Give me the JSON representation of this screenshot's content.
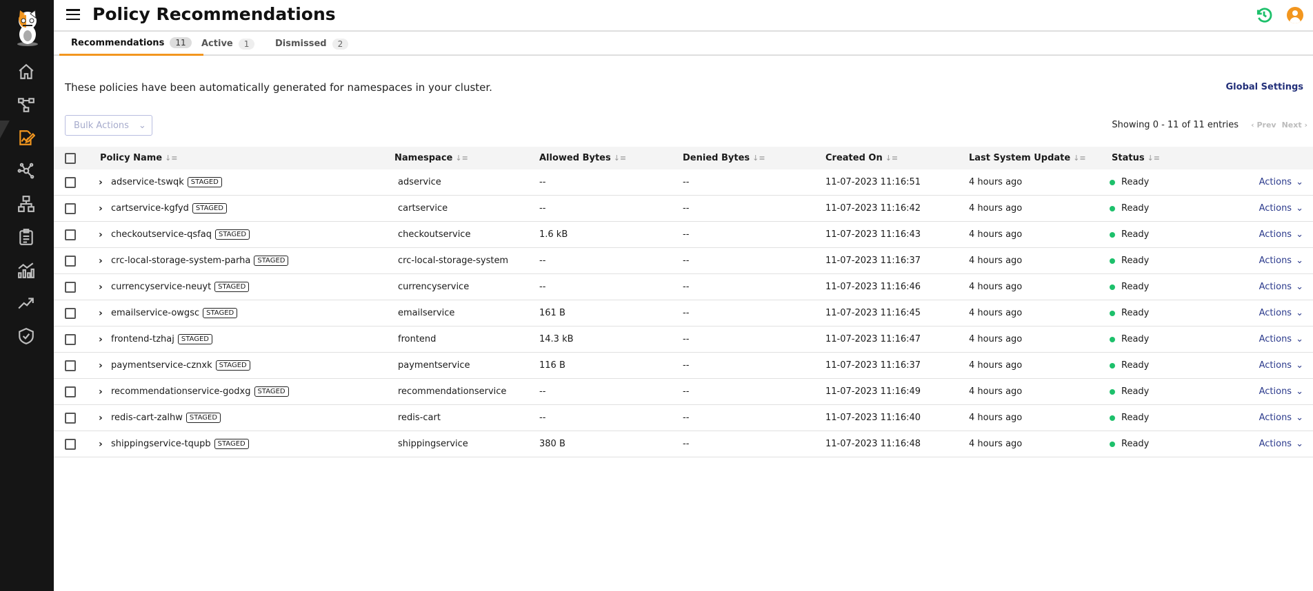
{
  "header": {
    "title": "Policy Recommendations"
  },
  "colors": {
    "accent": "#f2961f",
    "sidebar": "#151515",
    "link": "#23307a",
    "ready": "#1dc06b",
    "history": "#1dc06b"
  },
  "sidebar": {
    "items": [
      {
        "icon": "home-icon"
      },
      {
        "icon": "flow-graph-icon"
      },
      {
        "icon": "policy-edit-icon",
        "active": true
      },
      {
        "icon": "network-icon"
      },
      {
        "icon": "hierarchy-icon"
      },
      {
        "icon": "clipboard-icon"
      },
      {
        "icon": "analytics-icon"
      },
      {
        "icon": "trend-icon"
      },
      {
        "icon": "shield-check-icon"
      }
    ]
  },
  "tabs": [
    {
      "label": "Recommendations",
      "count": "11"
    },
    {
      "label": "Active",
      "count": "1"
    },
    {
      "label": "Dismissed",
      "count": "2"
    }
  ],
  "description": "These policies have been automatically generated for namespaces in your cluster.",
  "global_settings": "Global Settings",
  "bulk_actions": "Bulk Actions",
  "pagination": {
    "showing": "Showing 0 - 11 of 11 entries",
    "prev": "Prev",
    "next": "Next"
  },
  "table": {
    "columns": [
      "Policy Name",
      "Namespace",
      "Allowed Bytes",
      "Denied Bytes",
      "Created On",
      "Last System Update",
      "Status"
    ],
    "rows": [
      {
        "name": "adservice-tswqk",
        "tag": "STAGED",
        "namespace": "adservice",
        "allowed": "--",
        "denied": "--",
        "created": "11-07-2023 11:16:51",
        "updated": "4 hours ago",
        "status": "Ready",
        "action": "Actions"
      },
      {
        "name": "cartservice-kgfyd",
        "tag": "STAGED",
        "namespace": "cartservice",
        "allowed": "--",
        "denied": "--",
        "created": "11-07-2023 11:16:42",
        "updated": "4 hours ago",
        "status": "Ready",
        "action": "Actions"
      },
      {
        "name": "checkoutservice-qsfaq",
        "tag": "STAGED",
        "namespace": "checkoutservice",
        "allowed": "1.6 kB",
        "denied": "--",
        "created": "11-07-2023 11:16:43",
        "updated": "4 hours ago",
        "status": "Ready",
        "action": "Actions"
      },
      {
        "name": "crc-local-storage-system-parha",
        "tag": "STAGED",
        "namespace": "crc-local-storage-system",
        "allowed": "--",
        "denied": "--",
        "created": "11-07-2023 11:16:37",
        "updated": "4 hours ago",
        "status": "Ready",
        "action": "Actions"
      },
      {
        "name": "currencyservice-neuyt",
        "tag": "STAGED",
        "namespace": "currencyservice",
        "allowed": "--",
        "denied": "--",
        "created": "11-07-2023 11:16:46",
        "updated": "4 hours ago",
        "status": "Ready",
        "action": "Actions"
      },
      {
        "name": "emailservice-owgsc",
        "tag": "STAGED",
        "namespace": "emailservice",
        "allowed": "161 B",
        "denied": "--",
        "created": "11-07-2023 11:16:45",
        "updated": "4 hours ago",
        "status": "Ready",
        "action": "Actions"
      },
      {
        "name": "frontend-tzhaj",
        "tag": "STAGED",
        "namespace": "frontend",
        "allowed": "14.3 kB",
        "denied": "--",
        "created": "11-07-2023 11:16:47",
        "updated": "4 hours ago",
        "status": "Ready",
        "action": "Actions"
      },
      {
        "name": "paymentservice-cznxk",
        "tag": "STAGED",
        "namespace": "paymentservice",
        "allowed": "116 B",
        "denied": "--",
        "created": "11-07-2023 11:16:37",
        "updated": "4 hours ago",
        "status": "Ready",
        "action": "Actions"
      },
      {
        "name": "recommendationservice-godxg",
        "tag": "STAGED",
        "namespace": "recommendationservice",
        "allowed": "--",
        "denied": "--",
        "created": "11-07-2023 11:16:49",
        "updated": "4 hours ago",
        "status": "Ready",
        "action": "Actions"
      },
      {
        "name": "redis-cart-zalhw",
        "tag": "STAGED",
        "namespace": "redis-cart",
        "allowed": "--",
        "denied": "--",
        "created": "11-07-2023 11:16:40",
        "updated": "4 hours ago",
        "status": "Ready",
        "action": "Actions"
      },
      {
        "name": "shippingservice-tqupb",
        "tag": "STAGED",
        "namespace": "shippingservice",
        "allowed": "380 B",
        "denied": "--",
        "created": "11-07-2023 11:16:48",
        "updated": "4 hours ago",
        "status": "Ready",
        "action": "Actions"
      }
    ]
  }
}
